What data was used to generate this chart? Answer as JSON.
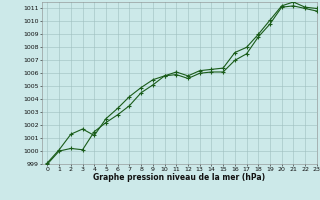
{
  "xlabel": "Graphe pression niveau de la mer (hPa)",
  "ylim": [
    999,
    1011.5
  ],
  "xlim": [
    -0.5,
    23
  ],
  "yticks": [
    999,
    1000,
    1001,
    1002,
    1003,
    1004,
    1005,
    1006,
    1007,
    1008,
    1009,
    1010,
    1011
  ],
  "xticks": [
    0,
    1,
    2,
    3,
    4,
    5,
    6,
    7,
    8,
    9,
    10,
    11,
    12,
    13,
    14,
    15,
    16,
    17,
    18,
    19,
    20,
    21,
    22,
    23
  ],
  "bg_color": "#cce9e9",
  "grid_color": "#9fbfbf",
  "line_color": "#1a5c1a",
  "line1_x": [
    0,
    1,
    2,
    3,
    4,
    5,
    6,
    7,
    8,
    9,
    10,
    11,
    12,
    13,
    14,
    15,
    16,
    17,
    18,
    19,
    20,
    21,
    22,
    23
  ],
  "line1_y": [
    999.0,
    1000.0,
    1000.2,
    1000.1,
    1001.5,
    1002.2,
    1002.8,
    1003.5,
    1004.5,
    1005.1,
    1005.8,
    1005.9,
    1005.6,
    1006.0,
    1006.1,
    1006.1,
    1007.0,
    1007.5,
    1008.8,
    1009.8,
    1011.1,
    1011.2,
    1011.0,
    1010.8
  ],
  "line2_x": [
    0,
    1,
    2,
    3,
    4,
    5,
    6,
    7,
    8,
    9,
    10,
    11,
    12,
    13,
    14,
    15,
    16,
    17,
    18,
    19,
    20,
    21,
    22,
    23
  ],
  "line2_y": [
    999.1,
    1000.1,
    1001.3,
    1001.7,
    1001.2,
    1002.5,
    1003.3,
    1004.2,
    1004.9,
    1005.5,
    1005.8,
    1006.1,
    1005.8,
    1006.2,
    1006.3,
    1006.4,
    1007.6,
    1008.0,
    1009.0,
    1010.1,
    1011.2,
    1011.5,
    1011.1,
    1011.0
  ]
}
